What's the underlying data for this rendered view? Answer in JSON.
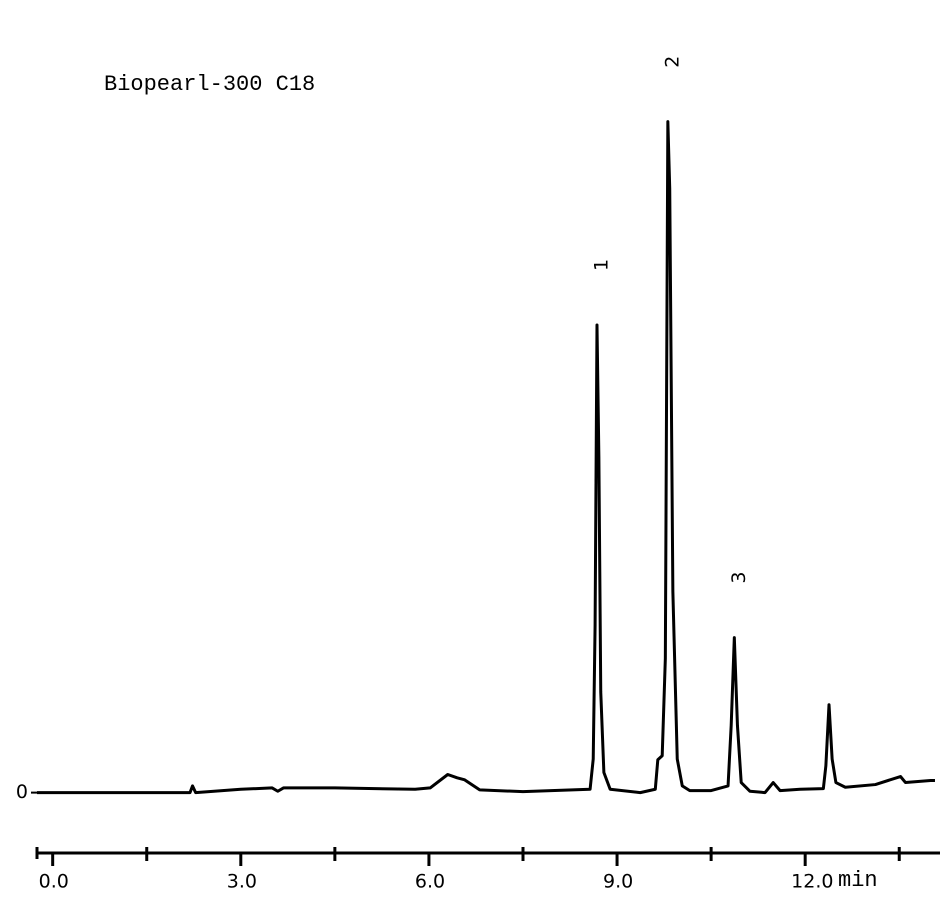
{
  "chart_data": {
    "type": "line",
    "title": "Biopearl-300 C18",
    "xlabel": "min",
    "x": [
      -0.25,
      1.0,
      2.19,
      2.23,
      2.28,
      3.0,
      3.5,
      3.59,
      3.68,
      4.5,
      5.78,
      6.02,
      6.3,
      6.45,
      6.57,
      6.81,
      7.5,
      8.57,
      8.62,
      8.65,
      8.68,
      8.71,
      8.74,
      8.79,
      8.89,
      9.37,
      9.61,
      9.65,
      9.72,
      9.77,
      9.81,
      9.84,
      9.89,
      9.96,
      10.04,
      10.16,
      10.5,
      10.77,
      10.82,
      10.87,
      10.92,
      10.98,
      11.12,
      11.36,
      11.49,
      11.6,
      11.92,
      12.29,
      12.33,
      12.38,
      12.43,
      12.49,
      12.64,
      13.12,
      13.52,
      13.6,
      14.0,
      14.07
    ],
    "series": [
      {
        "color": "#000000",
        "values": [
          0,
          0,
          0,
          1.0,
          0,
          0.5,
          0.7,
          0.2,
          0.7,
          0.7,
          0.5,
          0.7,
          2.7,
          2.2,
          1.9,
          0.4,
          0.15,
          0.5,
          5,
          25,
          69.7,
          50,
          15,
          3,
          0.5,
          0,
          0.5,
          4.9,
          5.5,
          20,
          100,
          90,
          30,
          5,
          1,
          0.3,
          0.3,
          1,
          10,
          23.1,
          10,
          1.5,
          0.2,
          0,
          1.5,
          0.3,
          0.5,
          0.6,
          4,
          13.1,
          5,
          1.5,
          0.8,
          1.2,
          2.4,
          1.5,
          1.8,
          1.8
        ]
      }
    ],
    "annotations": [
      {
        "text": "1",
        "x": 8.68
      },
      {
        "text": "2",
        "x": 9.81
      },
      {
        "text": "3",
        "x": 10.87
      }
    ],
    "xlim": [
      -0.25,
      14.15
    ],
    "ylim": [
      -9,
      115
    ],
    "xticks": [
      {
        "value": 0,
        "label": "0.0"
      },
      {
        "value": 3,
        "label": "3.0"
      },
      {
        "value": 6,
        "label": "6.0"
      },
      {
        "value": 9,
        "label": "9.0"
      },
      {
        "value": 12,
        "label": "12.0"
      }
    ],
    "xminor_ticks": [
      1.5,
      4.5,
      7.5,
      10.5,
      13.5
    ],
    "yticks": [
      0
    ],
    "grid": false
  }
}
